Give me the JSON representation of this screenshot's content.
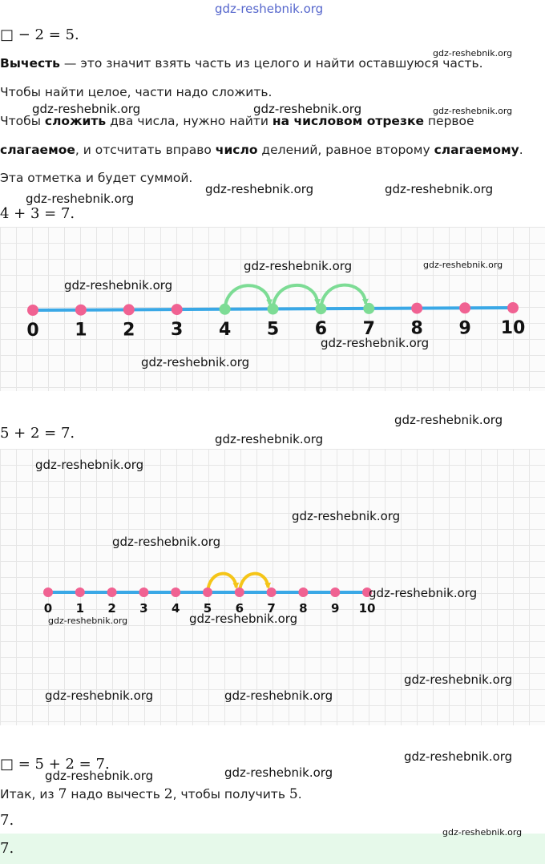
{
  "watermark": "gdz-reshebnik.org",
  "eq1": "□ − 2 = 5.",
  "p1": {
    "b1": "Вычесть",
    "t1": " — это значит взять часть из целого и найти оставшуюся часть."
  },
  "p2": "Чтобы найти целое, части надо сложить.",
  "p3": {
    "t1": "Чтобы ",
    "b1": "сложить",
    "t2": " два числа, нужно найти ",
    "b2": "на числовом отрезке",
    "t3": " первое"
  },
  "p4": {
    "b1": "слагаемое",
    "t1": ", и отсчитать вправо ",
    "b2": "число",
    "t2": " делений, равное второму ",
    "b3": "слагаемому",
    "t3": "."
  },
  "p5": "Эта отметка и будет суммой.",
  "eq2": "4 + 3 = 7.",
  "eq3": "5 + 2 = 7.",
  "eq4": "□ = 5 + 2 = 7.",
  "p6": {
    "t1": "Итак, из ",
    "m1": "7",
    "t2": " надо вычесть ",
    "m2": "2",
    "t3": ", чтобы получить ",
    "m3": "5",
    "t4": "."
  },
  "ans1": "7.",
  "ans2": "7.",
  "numberline1": {
    "ticks": [
      "0",
      "1",
      "2",
      "3",
      "4",
      "5",
      "6",
      "7",
      "8",
      "9",
      "10"
    ],
    "start": 4,
    "jumps": 3,
    "point_color": "#f06292",
    "line_color": "#3aa8e6",
    "jump_color": "#7ddc95"
  },
  "numberline2": {
    "ticks": [
      "0",
      "1",
      "2",
      "3",
      "4",
      "5",
      "6",
      "7",
      "8",
      "9",
      "10"
    ],
    "start": 5,
    "jumps": 2,
    "point_color": "#f06292",
    "line_color": "#3aa8e6",
    "jump_color": "#f5c518"
  }
}
